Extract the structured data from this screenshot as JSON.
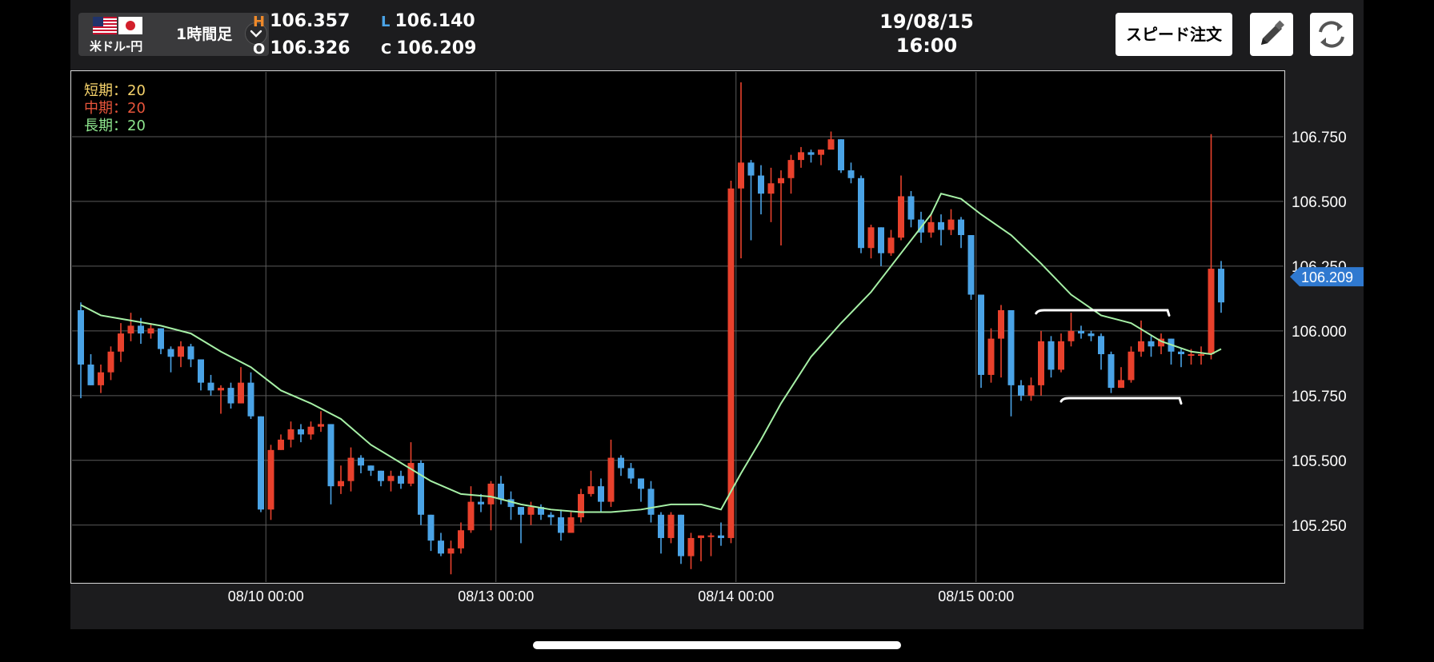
{
  "header": {
    "pair_label": "米ドル-円",
    "timeframe": "1時間足",
    "high_key": "H",
    "high": "106.357",
    "low_key": "L",
    "low": "106.140",
    "open_key": "O",
    "open": "106.326",
    "close_key": "C",
    "close": "106.209",
    "date": "19/08/15",
    "time": "16:00",
    "speed_order_label": "スピード注文"
  },
  "icons": {
    "dropdown": "chevron-down-icon",
    "edit": "pencil-icon",
    "refresh": "refresh-icon",
    "flag_us": "us-flag-icon",
    "flag_jp": "japan-flag-icon"
  },
  "ma_legend": [
    {
      "label": "短期：20",
      "color": "#f6d36b"
    },
    {
      "label": "中期：20",
      "color": "#e8553b"
    },
    {
      "label": "長期：20",
      "color": "#8ee68e"
    }
  ],
  "colors": {
    "bull": "#e8412c",
    "bear": "#4aa3e6",
    "ma_long": "#a6f0a6",
    "grid": "#5a5a5a",
    "price_tag": "#2f79d0"
  },
  "chart_data": {
    "type": "candlestick",
    "ylim": [
      105.03,
      107.0
    ],
    "y_ticks": [
      106.75,
      106.5,
      106.25,
      106.0,
      105.75,
      105.5,
      105.25
    ],
    "y_tick_labels": [
      "106.750",
      "106.500",
      "106.250",
      "106.000",
      "105.750",
      "105.500",
      "105.250"
    ],
    "x_tick_labels": [
      "08/10 00:00",
      "08/13 00:00",
      "08/14 00:00",
      "08/15 00:00"
    ],
    "x_tick_index": [
      18.5,
      41.5,
      65.5,
      89.5
    ],
    "current_price": "106.209",
    "candles": [
      [
        106.08,
        105.87,
        106.11,
        105.74
      ],
      [
        105.87,
        105.79,
        105.91,
        105.79
      ],
      [
        105.79,
        105.84,
        105.87,
        105.76
      ],
      [
        105.84,
        105.92,
        105.94,
        105.81
      ],
      [
        105.92,
        105.99,
        106.03,
        105.88
      ],
      [
        105.99,
        106.02,
        106.07,
        105.96
      ],
      [
        106.02,
        105.99,
        106.05,
        105.95
      ],
      [
        105.99,
        106.01,
        106.03,
        105.97
      ],
      [
        106.01,
        105.93,
        106.01,
        105.91
      ],
      [
        105.93,
        105.9,
        105.94,
        105.84
      ],
      [
        105.9,
        105.94,
        105.96,
        105.86
      ],
      [
        105.94,
        105.89,
        105.95,
        105.86
      ],
      [
        105.89,
        105.8,
        105.89,
        105.77
      ],
      [
        105.8,
        105.77,
        105.83,
        105.75
      ],
      [
        105.77,
        105.78,
        105.79,
        105.68
      ],
      [
        105.78,
        105.72,
        105.8,
        105.7
      ],
      [
        105.72,
        105.8,
        105.86,
        105.72
      ],
      [
        105.8,
        105.67,
        105.84,
        105.66
      ],
      [
        105.67,
        105.31,
        105.67,
        105.3
      ],
      [
        105.31,
        105.54,
        105.56,
        105.27
      ],
      [
        105.54,
        105.58,
        105.6,
        105.54
      ],
      [
        105.58,
        105.62,
        105.65,
        105.55
      ],
      [
        105.62,
        105.6,
        105.64,
        105.57
      ],
      [
        105.6,
        105.63,
        105.65,
        105.58
      ],
      [
        105.63,
        105.64,
        105.69,
        105.61
      ],
      [
        105.64,
        105.4,
        105.64,
        105.33
      ],
      [
        105.4,
        105.42,
        105.48,
        105.37
      ],
      [
        105.42,
        105.51,
        105.55,
        105.38
      ],
      [
        105.51,
        105.48,
        105.52,
        105.45
      ],
      [
        105.48,
        105.46,
        105.48,
        105.44
      ],
      [
        105.46,
        105.42,
        105.46,
        105.4
      ],
      [
        105.42,
        105.44,
        105.46,
        105.38
      ],
      [
        105.44,
        105.41,
        105.46,
        105.39
      ],
      [
        105.41,
        105.49,
        105.57,
        105.4
      ],
      [
        105.49,
        105.29,
        105.5,
        105.25
      ],
      [
        105.29,
        105.19,
        105.29,
        105.15
      ],
      [
        105.19,
        105.14,
        105.22,
        105.13
      ],
      [
        105.14,
        105.16,
        105.19,
        105.06
      ],
      [
        105.16,
        105.23,
        105.26,
        105.14
      ],
      [
        105.23,
        105.34,
        105.4,
        105.22
      ],
      [
        105.34,
        105.33,
        105.37,
        105.3
      ],
      [
        105.33,
        105.41,
        105.42,
        105.23
      ],
      [
        105.41,
        105.35,
        105.44,
        105.33
      ],
      [
        105.35,
        105.32,
        105.38,
        105.27
      ],
      [
        105.32,
        105.29,
        105.32,
        105.18
      ],
      [
        105.29,
        105.32,
        105.34,
        105.25
      ],
      [
        105.32,
        105.29,
        105.33,
        105.27
      ],
      [
        105.29,
        105.28,
        105.3,
        105.25
      ],
      [
        105.28,
        105.22,
        105.31,
        105.19
      ],
      [
        105.22,
        105.28,
        105.3,
        105.22
      ],
      [
        105.28,
        105.37,
        105.39,
        105.26
      ],
      [
        105.37,
        105.4,
        105.46,
        105.36
      ],
      [
        105.4,
        105.34,
        105.43,
        105.3
      ],
      [
        105.34,
        105.51,
        105.58,
        105.32
      ],
      [
        105.51,
        105.47,
        105.52,
        105.44
      ],
      [
        105.47,
        105.43,
        105.49,
        105.41
      ],
      [
        105.43,
        105.39,
        105.43,
        105.34
      ],
      [
        105.39,
        105.29,
        105.42,
        105.26
      ],
      [
        105.29,
        105.2,
        105.3,
        105.14
      ],
      [
        105.2,
        105.29,
        105.3,
        105.18
      ],
      [
        105.29,
        105.13,
        105.29,
        105.1
      ],
      [
        105.13,
        105.2,
        105.22,
        105.08
      ],
      [
        105.2,
        105.21,
        105.21,
        105.11
      ],
      [
        105.21,
        105.21,
        105.22,
        105.13
      ],
      [
        105.21,
        105.2,
        105.26,
        105.17
      ],
      [
        105.2,
        106.55,
        106.58,
        105.18
      ],
      [
        106.55,
        106.65,
        106.96,
        106.28
      ],
      [
        106.65,
        106.6,
        106.66,
        106.35
      ],
      [
        106.6,
        106.53,
        106.64,
        106.45
      ],
      [
        106.53,
        106.57,
        106.63,
        106.42
      ],
      [
        106.57,
        106.59,
        106.62,
        106.33
      ],
      [
        106.59,
        106.66,
        106.68,
        106.53
      ],
      [
        106.66,
        106.69,
        106.71,
        106.63
      ],
      [
        106.69,
        106.68,
        106.7,
        106.65
      ],
      [
        106.68,
        106.7,
        106.7,
        106.64
      ],
      [
        106.7,
        106.74,
        106.77,
        106.72
      ],
      [
        106.74,
        106.62,
        106.74,
        106.61
      ],
      [
        106.62,
        106.59,
        106.65,
        106.57
      ],
      [
        106.59,
        106.32,
        106.6,
        106.3
      ],
      [
        106.32,
        106.4,
        106.41,
        106.28
      ],
      [
        106.4,
        106.3,
        106.4,
        106.25
      ],
      [
        106.3,
        106.36,
        106.39,
        106.29
      ],
      [
        106.36,
        106.52,
        106.6,
        106.35
      ],
      [
        106.52,
        106.43,
        106.54,
        106.4
      ],
      [
        106.43,
        106.38,
        106.46,
        106.34
      ],
      [
        106.38,
        106.42,
        106.45,
        106.36
      ],
      [
        106.42,
        106.39,
        106.45,
        106.33
      ],
      [
        106.39,
        106.43,
        106.47,
        106.37
      ],
      [
        106.43,
        106.37,
        106.44,
        106.32
      ],
      [
        106.37,
        106.14,
        106.37,
        106.12
      ],
      [
        106.14,
        105.83,
        106.14,
        105.78
      ],
      [
        105.83,
        105.97,
        106.01,
        105.8
      ],
      [
        105.97,
        106.08,
        106.1,
        105.82
      ],
      [
        106.08,
        105.79,
        106.08,
        105.67
      ],
      [
        105.79,
        105.75,
        105.81,
        105.73
      ],
      [
        105.75,
        105.79,
        105.82,
        105.73
      ],
      [
        105.79,
        105.96,
        106.0,
        105.75
      ],
      [
        105.96,
        105.85,
        105.98,
        105.82
      ],
      [
        105.85,
        105.96,
        105.99,
        105.84
      ],
      [
        105.96,
        106.0,
        106.07,
        105.94
      ],
      [
        106.0,
        105.99,
        106.02,
        105.97
      ],
      [
        105.99,
        105.98,
        106.0,
        105.96
      ],
      [
        105.98,
        105.91,
        105.99,
        105.85
      ],
      [
        105.91,
        105.78,
        105.92,
        105.76
      ],
      [
        105.78,
        105.81,
        105.86,
        105.78
      ],
      [
        105.81,
        105.92,
        105.94,
        105.8
      ],
      [
        105.92,
        105.96,
        106.04,
        105.9
      ],
      [
        105.96,
        105.94,
        105.98,
        105.9
      ],
      [
        105.94,
        105.97,
        105.99,
        105.91
      ],
      [
        105.97,
        105.92,
        105.97,
        105.87
      ],
      [
        105.92,
        105.91,
        105.93,
        105.86
      ],
      [
        105.91,
        105.91,
        105.93,
        105.87
      ],
      [
        105.91,
        105.91,
        105.94,
        105.87
      ],
      [
        105.91,
        106.24,
        106.76,
        105.89
      ],
      [
        106.24,
        106.11,
        106.27,
        106.07
      ]
    ],
    "ma_long": [
      [
        0,
        106.1
      ],
      [
        2,
        106.06
      ],
      [
        5,
        106.04
      ],
      [
        8,
        106.02
      ],
      [
        11,
        105.99
      ],
      [
        14,
        105.92
      ],
      [
        17,
        105.86
      ],
      [
        20,
        105.77
      ],
      [
        23,
        105.72
      ],
      [
        26,
        105.66
      ],
      [
        29,
        105.56
      ],
      [
        32,
        105.49
      ],
      [
        35,
        105.42
      ],
      [
        38,
        105.37
      ],
      [
        41,
        105.36
      ],
      [
        44,
        105.33
      ],
      [
        47,
        105.31
      ],
      [
        50,
        105.3
      ],
      [
        53,
        105.3
      ],
      [
        56,
        105.31
      ],
      [
        59,
        105.33
      ],
      [
        62,
        105.33
      ],
      [
        64,
        105.31
      ],
      [
        66,
        105.45
      ],
      [
        68,
        105.58
      ],
      [
        70,
        105.72
      ],
      [
        73,
        105.9
      ],
      [
        76,
        106.03
      ],
      [
        79,
        106.15
      ],
      [
        82,
        106.3
      ],
      [
        85,
        106.45
      ],
      [
        86,
        106.53
      ],
      [
        88,
        106.51
      ],
      [
        90,
        106.45
      ],
      [
        93,
        106.37
      ],
      [
        96,
        106.26
      ],
      [
        99,
        106.14
      ],
      [
        102,
        106.06
      ],
      [
        105,
        106.03
      ],
      [
        108,
        105.96
      ],
      [
        111,
        105.92
      ],
      [
        113,
        105.91
      ],
      [
        114,
        105.93
      ]
    ],
    "annotations": [
      {
        "x1": 95.5,
        "x2": 108.8,
        "y": 106.08,
        "end_y": 106.06
      },
      {
        "x1": 98.0,
        "x2": 110.0,
        "y": 105.74,
        "end_y": 105.72
      }
    ]
  }
}
